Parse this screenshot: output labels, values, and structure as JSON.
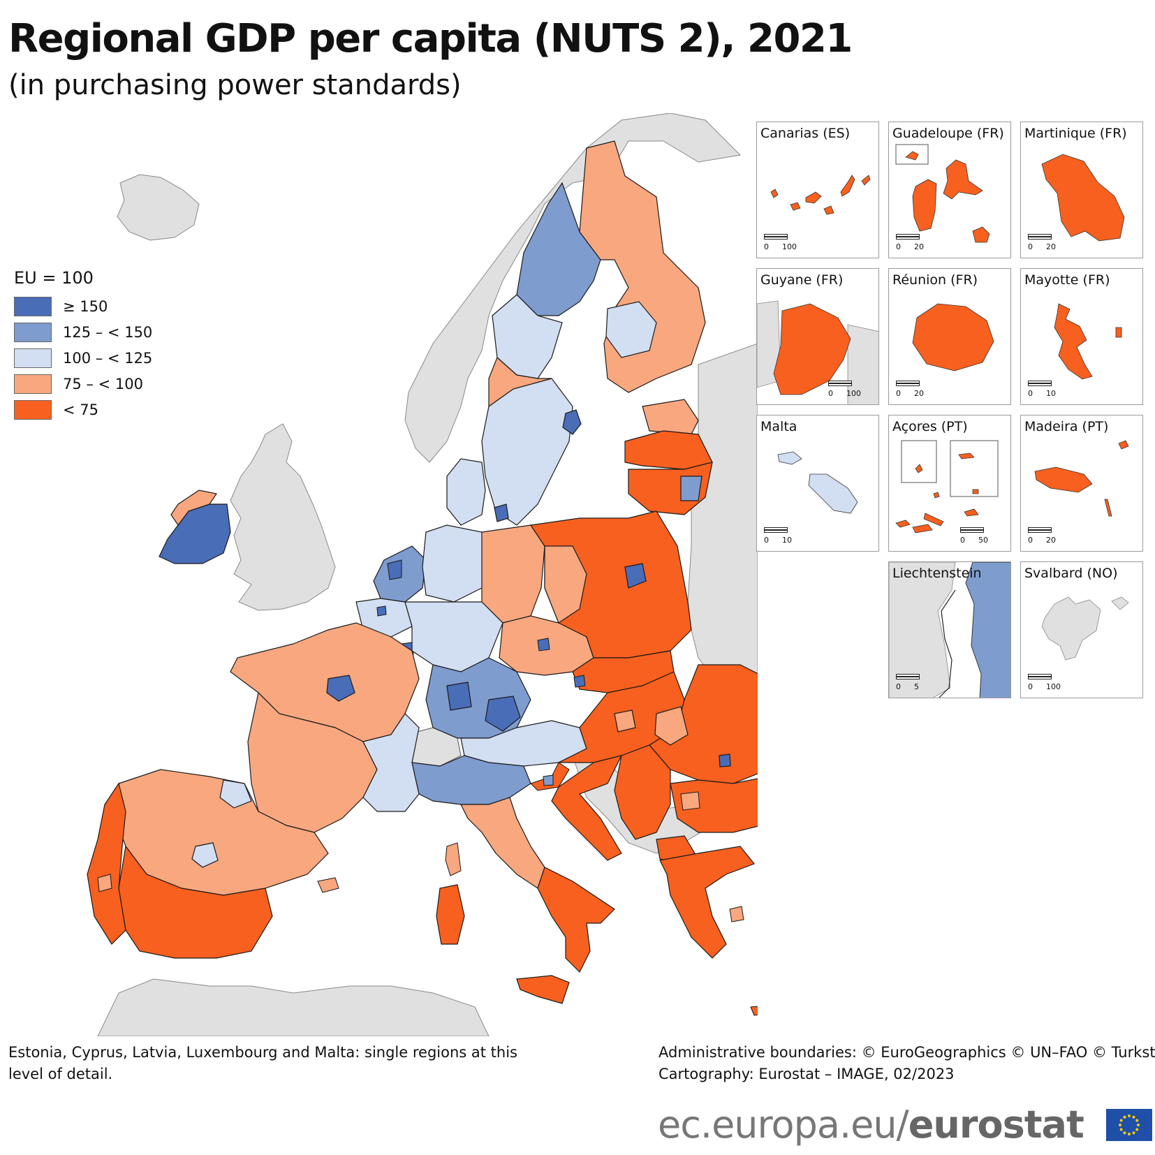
{
  "title": "Regional GDP per capita (NUTS 2), 2021",
  "subtitle": "(in purchasing power standards)",
  "legend": {
    "title": "EU = 100",
    "classes": [
      {
        "label": "≥ 150",
        "color": "#4a6db8"
      },
      {
        "label": "125 – < 150",
        "color": "#7f9ccf"
      },
      {
        "label": "100 – < 125",
        "color": "#d2def1"
      },
      {
        "label": "75 – < 100",
        "color": "#f8a77f"
      },
      {
        "label": "< 75",
        "color": "#f8601f"
      }
    ]
  },
  "colors": {
    "non_data": "#e0e0e0",
    "sea": "#ffffff",
    "boundary": "#1a1a1a"
  },
  "insets": [
    {
      "label": "Canarias (ES)",
      "class": "< 75",
      "scale": [
        "0",
        "100"
      ]
    },
    {
      "label": "Guadeloupe (FR)",
      "class": "< 75",
      "scale": [
        "0",
        "20"
      ]
    },
    {
      "label": "Martinique (FR)",
      "class": "< 75",
      "scale": [
        "0",
        "20"
      ]
    },
    {
      "label": "Guyane (FR)",
      "class": "< 75",
      "scale": [
        "0",
        "100"
      ]
    },
    {
      "label": "Réunion (FR)",
      "class": "< 75",
      "scale": [
        "0",
        "20"
      ]
    },
    {
      "label": "Mayotte (FR)",
      "class": "< 75",
      "scale": [
        "0",
        "10"
      ]
    },
    {
      "label": "Malta",
      "class": "100 – < 125",
      "scale": [
        "0",
        "10"
      ]
    },
    {
      "label": "Açores (PT)",
      "class": "< 75",
      "scale": [
        "0",
        "50"
      ]
    },
    {
      "label": "Madeira (PT)",
      "class": "< 75",
      "scale": [
        "0",
        "20"
      ]
    },
    {
      "label": "Liechtenstein",
      "class": "125 – < 150",
      "scale": [
        "0",
        "5"
      ]
    },
    {
      "label": "Svalbard (NO)",
      "class": "no data",
      "scale": [
        "0",
        "100"
      ]
    }
  ],
  "footnote": "Estonia, Cyprus, Latvia, Luxembourg and Malta: single regions at this level of detail.",
  "credits": {
    "line1": "Administrative boundaries: © EuroGeographics © UN–FAO © Turkstat",
    "line2": "Cartography: Eurostat – IMAGE, 02/2023"
  },
  "url": {
    "prefix": "ec.europa.eu/",
    "brand": "eurostat"
  }
}
